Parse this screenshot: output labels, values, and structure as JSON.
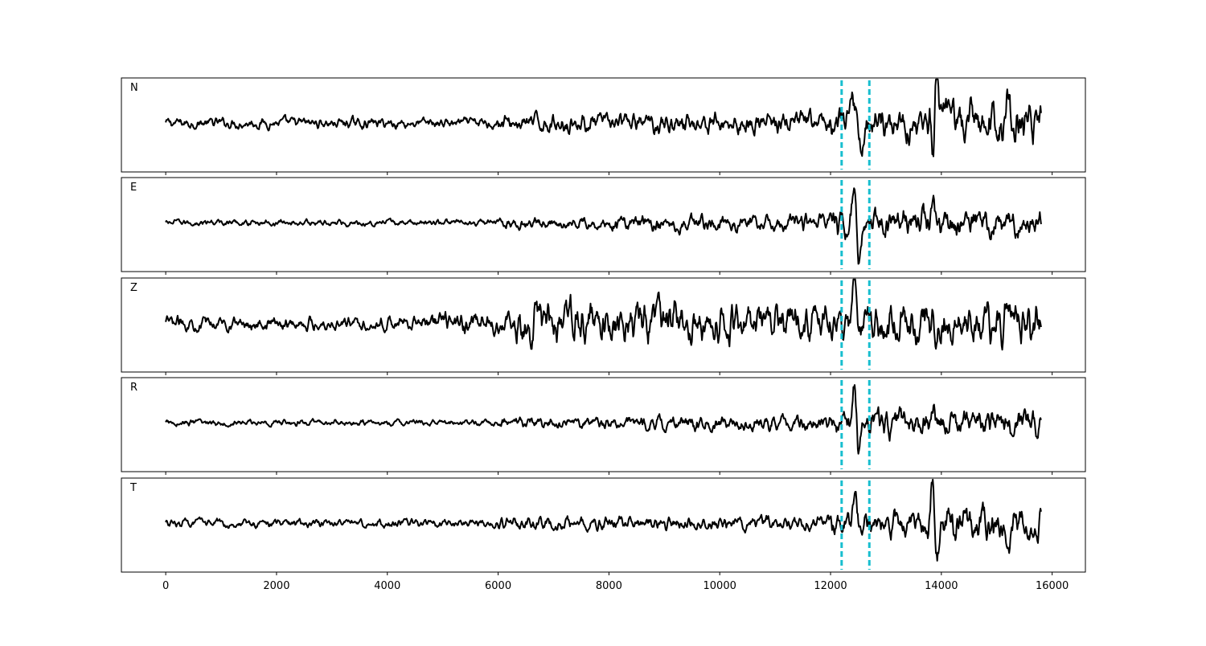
{
  "chart_data": {
    "type": "line",
    "x_range": [
      -800,
      16600
    ],
    "x_ticks": [
      0,
      2000,
      4000,
      6000,
      8000,
      10000,
      12000,
      14000,
      16000
    ],
    "x_tick_labels": [
      "0",
      "2000",
      "4000",
      "6000",
      "8000",
      "10000",
      "12000",
      "14000",
      "16000"
    ],
    "xlabel": "",
    "ylabel": "",
    "y_tick_labels_visible": false,
    "grid": false,
    "shared_x_axis": true,
    "trace_color": "#000000",
    "marker_color": "#17becf",
    "vertical_markers": [
      12200,
      12700
    ],
    "panels": [
      {
        "label": "N",
        "y_range": [
          -1,
          1
        ]
      },
      {
        "label": "E",
        "y_range": [
          -1,
          1
        ]
      },
      {
        "label": "Z",
        "y_range": [
          -1,
          1
        ]
      },
      {
        "label": "R",
        "y_range": [
          -1,
          1
        ]
      },
      {
        "label": "T",
        "y_range": [
          -1,
          1
        ]
      }
    ]
  }
}
